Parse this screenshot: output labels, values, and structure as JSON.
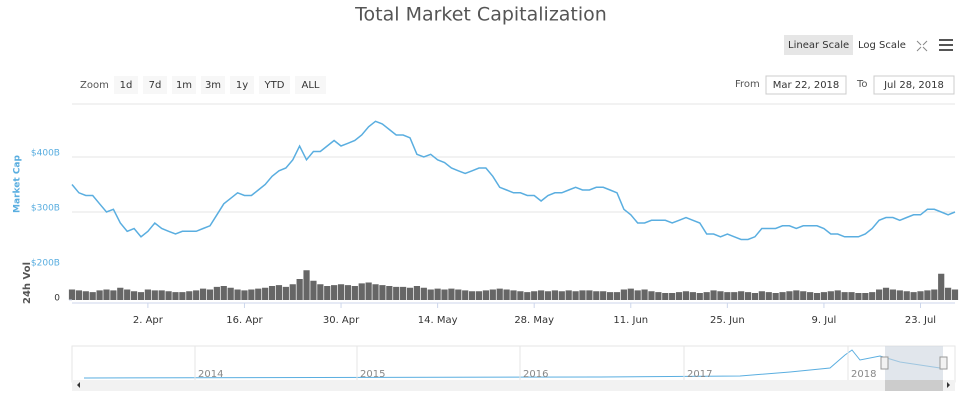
{
  "chart_data": {
    "type": "line",
    "title": "Total Market Capitalization",
    "ylabel": "Market Cap",
    "y2label": "24h Vol",
    "x": [
      "2018-03-22",
      "2018-03-23",
      "2018-03-24",
      "2018-03-25",
      "2018-03-26",
      "2018-03-27",
      "2018-03-28",
      "2018-03-29",
      "2018-03-30",
      "2018-03-31",
      "2018-04-01",
      "2018-04-02",
      "2018-04-03",
      "2018-04-04",
      "2018-04-05",
      "2018-04-06",
      "2018-04-07",
      "2018-04-08",
      "2018-04-09",
      "2018-04-10",
      "2018-04-11",
      "2018-04-12",
      "2018-04-13",
      "2018-04-14",
      "2018-04-15",
      "2018-04-16",
      "2018-04-17",
      "2018-04-18",
      "2018-04-19",
      "2018-04-20",
      "2018-04-21",
      "2018-04-22",
      "2018-04-23",
      "2018-04-24",
      "2018-04-25",
      "2018-04-26",
      "2018-04-27",
      "2018-04-28",
      "2018-04-29",
      "2018-04-30",
      "2018-05-01",
      "2018-05-02",
      "2018-05-03",
      "2018-05-04",
      "2018-05-05",
      "2018-05-06",
      "2018-05-07",
      "2018-05-08",
      "2018-05-09",
      "2018-05-10",
      "2018-05-11",
      "2018-05-12",
      "2018-05-13",
      "2018-05-14",
      "2018-05-15",
      "2018-05-16",
      "2018-05-17",
      "2018-05-18",
      "2018-05-19",
      "2018-05-20",
      "2018-05-21",
      "2018-05-22",
      "2018-05-23",
      "2018-05-24",
      "2018-05-25",
      "2018-05-26",
      "2018-05-27",
      "2018-05-28",
      "2018-05-29",
      "2018-05-30",
      "2018-05-31",
      "2018-06-01",
      "2018-06-02",
      "2018-06-03",
      "2018-06-04",
      "2018-06-05",
      "2018-06-06",
      "2018-06-07",
      "2018-06-08",
      "2018-06-09",
      "2018-06-10",
      "2018-06-11",
      "2018-06-12",
      "2018-06-13",
      "2018-06-14",
      "2018-06-15",
      "2018-06-16",
      "2018-06-17",
      "2018-06-18",
      "2018-06-19",
      "2018-06-20",
      "2018-06-21",
      "2018-06-22",
      "2018-06-23",
      "2018-06-24",
      "2018-06-25",
      "2018-06-26",
      "2018-06-27",
      "2018-06-28",
      "2018-06-29",
      "2018-06-30",
      "2018-07-01",
      "2018-07-02",
      "2018-07-03",
      "2018-07-04",
      "2018-07-05",
      "2018-07-06",
      "2018-07-07",
      "2018-07-08",
      "2018-07-09",
      "2018-07-10",
      "2018-07-11",
      "2018-07-12",
      "2018-07-13",
      "2018-07-14",
      "2018-07-15",
      "2018-07-16",
      "2018-07-17",
      "2018-07-18",
      "2018-07-19",
      "2018-07-20",
      "2018-07-21",
      "2018-07-22",
      "2018-07-23",
      "2018-07-24",
      "2018-07-25",
      "2018-07-26",
      "2018-07-27",
      "2018-07-28"
    ],
    "series": [
      {
        "color": "#5aaee0",
        "values": [
          350,
          335,
          330,
          330,
          315,
          300,
          305,
          280,
          265,
          270,
          255,
          265,
          280,
          270,
          265,
          260,
          265,
          265,
          265,
          270,
          275,
          295,
          315,
          325,
          335,
          330,
          330,
          340,
          350,
          365,
          375,
          380,
          395,
          420,
          395,
          410,
          410,
          420,
          430,
          420,
          425,
          430,
          440,
          455,
          465,
          460,
          450,
          440,
          440,
          435,
          405,
          400,
          405,
          395,
          390,
          380,
          375,
          370,
          375,
          380,
          380,
          365,
          345,
          340,
          335,
          335,
          330,
          330,
          320,
          330,
          335,
          335,
          340,
          345,
          340,
          340,
          345,
          345,
          340,
          335,
          305,
          295,
          280,
          280,
          285,
          285,
          285,
          280,
          285,
          290,
          285,
          280,
          260,
          260,
          255,
          260,
          255,
          250,
          250,
          255,
          270,
          270,
          270,
          275,
          275,
          270,
          275,
          275,
          275,
          270,
          260,
          260,
          255,
          255,
          255,
          260,
          270,
          285,
          290,
          290,
          285,
          290,
          295,
          295,
          305,
          305,
          300,
          295,
          300
        ]
      },
      {
        "type": "bar",
        "axis": "y2",
        "color": "#666666",
        "values": [
          12,
          11,
          10,
          9,
          11,
          12,
          11,
          14,
          12,
          10,
          9,
          12,
          11,
          11,
          10,
          9,
          9,
          10,
          11,
          13,
          12,
          15,
          16,
          14,
          12,
          11,
          12,
          13,
          14,
          16,
          17,
          15,
          18,
          24,
          34,
          22,
          18,
          16,
          17,
          18,
          17,
          16,
          19,
          20,
          18,
          17,
          16,
          15,
          15,
          14,
          16,
          14,
          12,
          13,
          12,
          13,
          12,
          11,
          10,
          10,
          11,
          12,
          13,
          12,
          11,
          10,
          9,
          10,
          11,
          10,
          11,
          10,
          11,
          10,
          11,
          11,
          10,
          10,
          9,
          9,
          12,
          13,
          11,
          12,
          10,
          9,
          8,
          8,
          9,
          10,
          9,
          8,
          9,
          11,
          10,
          9,
          9,
          10,
          9,
          8,
          10,
          9,
          8,
          9,
          10,
          11,
          10,
          9,
          8,
          9,
          10,
          11,
          9,
          9,
          8,
          8,
          9,
          12,
          14,
          12,
          11,
          10,
          9,
          10,
          11,
          12,
          30,
          14,
          12
        ]
      }
    ],
    "xlim": [
      "2018-03-22",
      "2018-07-28"
    ],
    "xticks": [
      {
        "value": "2018-04-02",
        "label": "2. Apr"
      },
      {
        "value": "2018-04-16",
        "label": "16. Apr"
      },
      {
        "value": "2018-04-30",
        "label": "30. Apr"
      },
      {
        "value": "2018-05-14",
        "label": "14. May"
      },
      {
        "value": "2018-05-28",
        "label": "28. May"
      },
      {
        "value": "2018-06-11",
        "label": "11. Jun"
      },
      {
        "value": "2018-06-25",
        "label": "25. Jun"
      },
      {
        "value": "2018-07-09",
        "label": "9. Jul"
      },
      {
        "value": "2018-07-23",
        "label": "23. Jul"
      }
    ],
    "ylim": [
      200,
      500
    ],
    "yticks": [
      {
        "value": 200,
        "label": "$200B"
      },
      {
        "value": 300,
        "label": "$300B"
      },
      {
        "value": 400,
        "label": "$400B"
      }
    ],
    "y2lim": [
      0,
      40
    ],
    "y2ticks": [
      0
    ],
    "grid": true
  },
  "controls": {
    "scales": [
      "Linear Scale",
      "Log Scale"
    ],
    "zoom_label": "Zoom",
    "zoom": [
      "1d",
      "7d",
      "1m",
      "3m",
      "1y",
      "YTD",
      "ALL"
    ],
    "from_label": "From",
    "from": "Mar 22, 2018",
    "to_label": "To",
    "to": "Jul 28, 2018"
  },
  "navigator": {
    "labels": [
      "2014",
      "2015",
      "2016",
      "2017",
      "2018"
    ]
  }
}
